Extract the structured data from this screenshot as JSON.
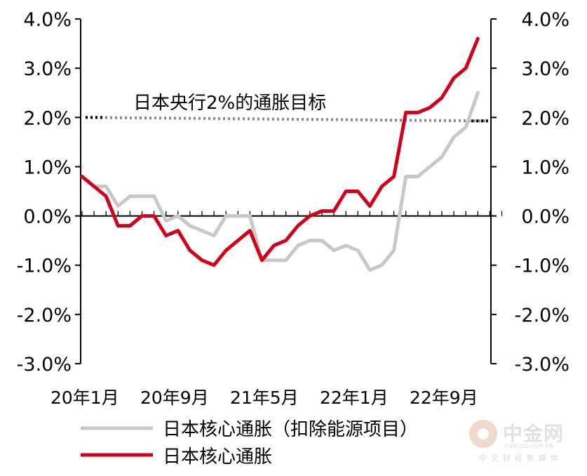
{
  "chart_data": {
    "type": "line",
    "annotation": "日本央行2%的通胀目标",
    "target_value": 2.0,
    "ylim": [
      -3.0,
      4.0
    ],
    "y_ticks": [
      "4.0%",
      "3.0%",
      "2.0%",
      "1.0%",
      "0.0%",
      "-1.0%",
      "-2.0%",
      "-3.0%"
    ],
    "x_tick_labels": [
      "20年1月",
      "20年9月",
      "21年5月",
      "22年1月",
      "22年9月"
    ],
    "x_categories": [
      "20-01",
      "20-02",
      "20-03",
      "20-04",
      "20-05",
      "20-06",
      "20-07",
      "20-08",
      "20-09",
      "20-10",
      "20-11",
      "20-12",
      "21-01",
      "21-02",
      "21-03",
      "21-04",
      "21-05",
      "21-06",
      "21-07",
      "21-08",
      "21-09",
      "21-10",
      "21-11",
      "21-12",
      "22-01",
      "22-02",
      "22-03",
      "22-04",
      "22-05",
      "22-06",
      "22-07",
      "22-08",
      "22-09",
      "22-10",
      "22-11",
      "22-12"
    ],
    "series": [
      {
        "name": "日本核心通胀（扣除能源项目）",
        "color": "#c8c8c8",
        "values": [
          0.8,
          0.6,
          0.6,
          0.2,
          0.4,
          0.4,
          0.4,
          -0.1,
          0.0,
          -0.2,
          -0.3,
          -0.4,
          0.0,
          0.0,
          0.0,
          -0.9,
          -0.9,
          -0.9,
          -0.6,
          -0.5,
          -0.5,
          -0.7,
          -0.6,
          -0.7,
          -1.1,
          -1.0,
          -0.7,
          0.8,
          0.8,
          1.0,
          1.2,
          1.6,
          1.8,
          2.5
        ]
      },
      {
        "name": "日本核心通胀",
        "color": "#d0021b",
        "values": [
          0.8,
          0.6,
          0.4,
          -0.2,
          -0.2,
          0.0,
          0.0,
          -0.4,
          -0.3,
          -0.7,
          -0.9,
          -1.0,
          -0.7,
          -0.5,
          -0.3,
          -0.9,
          -0.6,
          -0.5,
          -0.2,
          0.0,
          0.1,
          0.1,
          0.5,
          0.5,
          0.2,
          0.6,
          0.8,
          2.1,
          2.1,
          2.2,
          2.4,
          2.8,
          3.0,
          3.6
        ]
      }
    ],
    "grid": false,
    "legend_position": "bottom"
  },
  "watermark": {
    "name": "中金网",
    "url": "CNGOLD.COM.CN",
    "sub": "中文财经新媒体"
  }
}
